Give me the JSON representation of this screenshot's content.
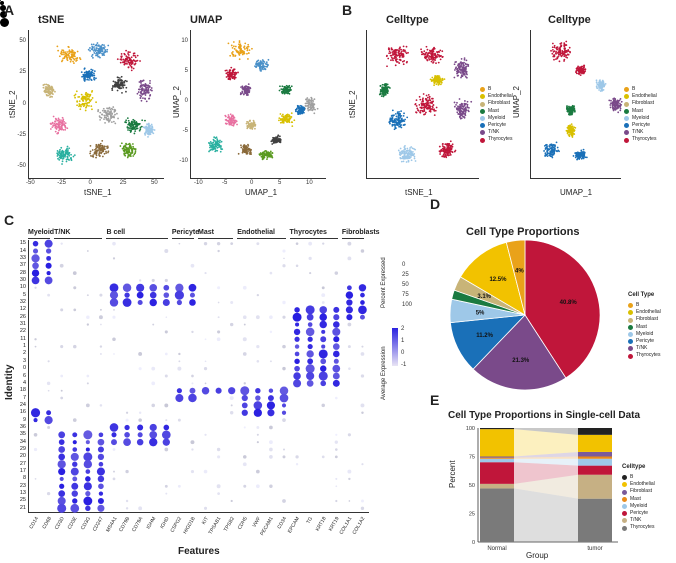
{
  "panels": {
    "A": {
      "letter": "A",
      "tsne_title": "tSNE",
      "umap_title": "UMAP",
      "tsne_x": "tSNE_1",
      "tsne_y": "tSNE_2",
      "umap_x": "UMAP_1",
      "umap_y": "UMAP_2",
      "tsne_xticks": [
        "-50",
        "-25",
        "0",
        "25",
        "50"
      ],
      "tsne_yticks": [
        "50",
        "25",
        "0",
        "-25",
        "-50"
      ],
      "umap_xticks": [
        "-10",
        "-5",
        "0",
        "5",
        "10"
      ],
      "umap_yticks": [
        "10",
        "5",
        "0",
        "-5",
        "-10"
      ]
    },
    "B": {
      "letter": "B",
      "title1": "Celltype",
      "title2": "Celltype"
    },
    "C": {
      "letter": "C",
      "xlabel": "Features",
      "ylabel": "Identity",
      "groups": [
        "Myeloid",
        "T/NK",
        "B cell",
        "Pericyte",
        "Mast",
        "Endothelial",
        "Thyrocytes",
        "Fibroblasts"
      ],
      "features": [
        "CD14",
        "CD68",
        "CD3D",
        "CD3E",
        "CD3G",
        "CD247",
        "MS4A1",
        "CD79B",
        "CD79A",
        "IGHM",
        "IGHD",
        "CSPG2",
        "HIGD1B",
        "KIT",
        "TPSAB1",
        "TPSB2",
        "CDH5",
        "VWF",
        "PECAM1",
        "CD34",
        "EPCAM",
        "TG",
        "KRT18",
        "KRT19",
        "COL1A1",
        "COL1A2"
      ],
      "identities": [
        "15",
        "14",
        "33",
        "37",
        "28",
        "30",
        "10",
        "5",
        "32",
        "12",
        "26",
        "31",
        "22",
        "11",
        "1",
        "2",
        "3",
        "0",
        "6",
        "4",
        "18",
        "7",
        "24",
        "16",
        "9",
        "36",
        "35",
        "34",
        "29",
        "20",
        "27",
        "17",
        "8",
        "23",
        "13",
        "25",
        "21"
      ],
      "pct_title": "Percent Expressed",
      "pct_values": [
        "0",
        "25",
        "50",
        "75",
        "100"
      ],
      "avg_title": "Average Expression",
      "avg_values": [
        "2",
        "1",
        "0",
        "-1"
      ]
    },
    "D": {
      "letter": "D",
      "title": "Cell Type Proportions",
      "legend_title": "Cell Type"
    },
    "E": {
      "letter": "E",
      "title": "Cell Type Proportions in Single-cell Data",
      "xlabel": "Group",
      "ylabel": "Percent",
      "yticks": [
        "100",
        "75",
        "50",
        "25",
        "0"
      ],
      "legend_title": "Celltype"
    }
  },
  "celltypes": [
    {
      "name": "B",
      "color": "#222222"
    },
    {
      "name": "Endothelial",
      "color": "#f2c200"
    },
    {
      "name": "Fibroblast",
      "color": "#7a5a9a"
    },
    {
      "name": "Mast",
      "color": "#e98a1a"
    },
    {
      "name": "Myeloid",
      "color": "#9ec8e8"
    },
    {
      "name": "Pericyte",
      "color": "#c0163a"
    },
    {
      "name": "T/NK",
      "color": "#c6b084"
    },
    {
      "name": "Thyrocytes",
      "color": "#7a7a7a"
    }
  ],
  "celltypes_B": [
    {
      "name": "B",
      "color": "#e9a21a"
    },
    {
      "name": "Endothelial",
      "color": "#d8c000"
    },
    {
      "name": "Fibroblast",
      "color": "#c8b478"
    },
    {
      "name": "Mast",
      "color": "#1a7a40"
    },
    {
      "name": "Myeloid",
      "color": "#9ec8e8"
    },
    {
      "name": "Pericyte",
      "color": "#1a70b8"
    },
    {
      "name": "T/NK",
      "color": "#7a4a8a"
    },
    {
      "name": "Thyrocytes",
      "color": "#c0163a"
    }
  ],
  "chart_data": [
    {
      "type": "pie",
      "title": "Cell Type Proportions",
      "slices": [
        {
          "name": "Thyrocytes",
          "value": 40.8,
          "label": "40.8%",
          "color": "#c0163a"
        },
        {
          "name": "T/NK",
          "value": 21.3,
          "label": "21.3%",
          "color": "#7a4a8a"
        },
        {
          "name": "Pericyte",
          "value": 11.2,
          "label": "11.2%",
          "color": "#1a70b8"
        },
        {
          "name": "Myeloid",
          "value": 5.0,
          "label": "5%",
          "color": "#9ec8e8"
        },
        {
          "name": "Mast",
          "value": 2.0,
          "label": "",
          "color": "#1a7a40"
        },
        {
          "name": "Fibroblast",
          "value": 3.1,
          "label": "3.1%",
          "color": "#c8b478"
        },
        {
          "name": "Endothelial",
          "value": 12.5,
          "label": "12.5%",
          "color": "#f2c200"
        },
        {
          "name": "B",
          "value": 4.0,
          "label": "4%",
          "color": "#e9a21a"
        }
      ]
    },
    {
      "type": "bar",
      "title": "Cell Type Proportions in Single-cell Data",
      "categories": [
        "Normal",
        "tumor"
      ],
      "xlabel": "Group",
      "ylabel": "Percent",
      "ylim": [
        0,
        100
      ],
      "series": [
        {
          "name": "Thyrocytes",
          "values": [
            47,
            38
          ],
          "color": "#7a7a7a"
        },
        {
          "name": "T/NK",
          "values": [
            4,
            21
          ],
          "color": "#c6b084"
        },
        {
          "name": "Pericyte",
          "values": [
            19,
            8
          ],
          "color": "#c0163a"
        },
        {
          "name": "Myeloid",
          "values": [
            3,
            6
          ],
          "color": "#9ec8e8"
        },
        {
          "name": "Mast",
          "values": [
            1,
            2
          ],
          "color": "#e98a1a"
        },
        {
          "name": "Fibroblast",
          "values": [
            1,
            4
          ],
          "color": "#7a5a9a"
        },
        {
          "name": "Endothelial",
          "values": [
            24,
            15
          ],
          "color": "#f2c200"
        },
        {
          "name": "B",
          "values": [
            1,
            6
          ],
          "color": "#222222"
        }
      ]
    }
  ]
}
